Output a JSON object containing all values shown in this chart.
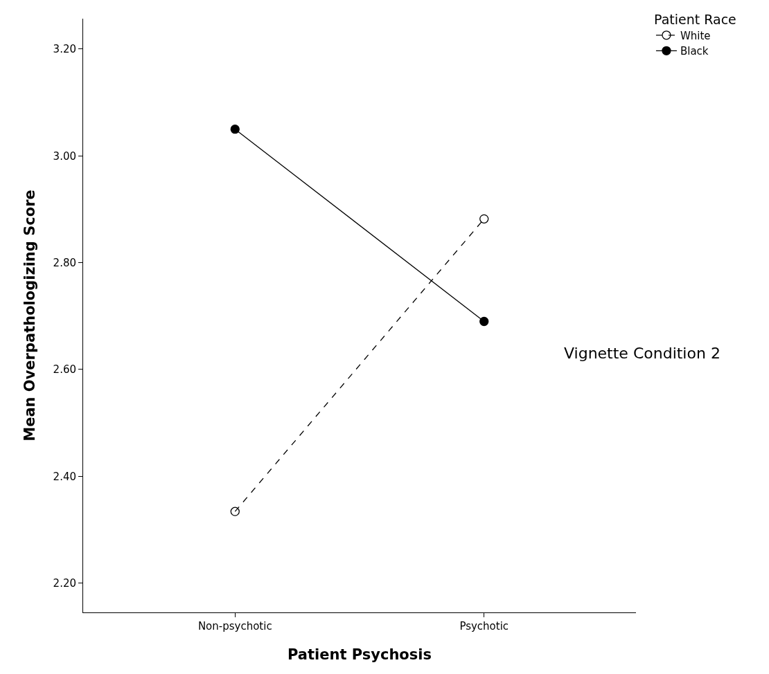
{
  "chart_data": {
    "type": "line",
    "xlabel": "Patient Psychosis",
    "ylabel": "Mean Overpathologizing Score",
    "legend_title": "Patient Race",
    "categories": [
      "Non-psychotic",
      "Psychotic"
    ],
    "series": [
      {
        "name": "White",
        "color": "#000000",
        "values": [
          2.334,
          2.882
        ],
        "line_style": "dashed"
      },
      {
        "name": "Black",
        "color": "#000000",
        "values": [
          3.05,
          2.69
        ],
        "line_style": "solid"
      }
    ],
    "ylim": [
      2.145,
      3.257
    ],
    "yticks": [
      {
        "value": 2.2,
        "label": "2.20"
      },
      {
        "value": 2.4,
        "label": "2.40"
      },
      {
        "value": 2.6,
        "label": "2.60"
      },
      {
        "value": 2.8,
        "label": "2.80"
      },
      {
        "value": 3.0,
        "label": "3.00"
      },
      {
        "value": 3.2,
        "label": "3.20"
      }
    ],
    "annotations": [
      "Vignette Condition 2"
    ],
    "grid": false,
    "legend": "top right",
    "marker": "circle"
  }
}
